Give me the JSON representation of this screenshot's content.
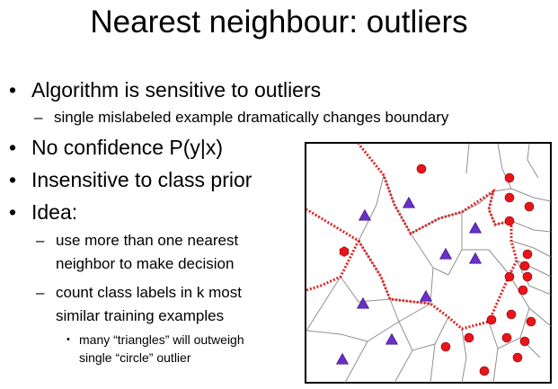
{
  "slide": {
    "title": "Nearest neighbour: outliers",
    "bullets": [
      {
        "text": "Algorithm is sensitive to outliers",
        "sub": [
          "single mislabeled example dramatically changes boundary"
        ]
      },
      {
        "text": "No confidence P(y|x)"
      },
      {
        "text": "Insensitive to class prior"
      },
      {
        "text": "Idea:",
        "sub": [
          "use more than one nearest",
          "neighbor to make decision",
          "count class labels in k most",
          "similar training examples"
        ],
        "subsub": [
          "many “triangles” will outweigh",
          "single “circle” outlier"
        ]
      }
    ]
  },
  "figure": {
    "colors": {
      "circle": "#e8141a",
      "triangle": "#6a2fc9",
      "boundary": "#e02020",
      "cell_edges": "#909090",
      "frame": "#000000"
    },
    "legend_classes": [
      "circle",
      "triangle"
    ]
  }
}
